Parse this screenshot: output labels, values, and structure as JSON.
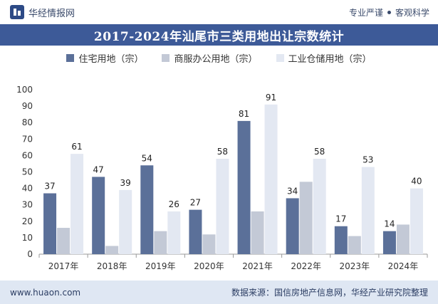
{
  "header": {
    "brand": "华经情报网",
    "slogan_left": "专业严谨",
    "slogan_right": "客观科学"
  },
  "chart_data": {
    "type": "bar",
    "title": "2017-2024年汕尾市三类用地出让宗数统计",
    "categories": [
      "2017年",
      "2018年",
      "2019年",
      "2020年",
      "2021年",
      "2022年",
      "2023年",
      "2024年"
    ],
    "series": [
      {
        "name": "住宅用地（宗）",
        "color": "#5b7099",
        "values": [
          37,
          47,
          54,
          27,
          81,
          34,
          17,
          14
        ],
        "labels": [
          "37",
          "47",
          "54",
          "27",
          "81",
          "34",
          "17",
          "14"
        ]
      },
      {
        "name": "商服办公用地（宗）",
        "color": "#c3c9d6",
        "values": [
          16,
          5,
          14,
          12,
          26,
          44,
          11,
          18
        ],
        "labels": [
          "",
          "",
          "",
          "",
          "",
          "",
          "",
          ""
        ]
      },
      {
        "name": "工业仓储用地（宗）",
        "color": "#e3e8f2",
        "values": [
          61,
          39,
          26,
          58,
          91,
          58,
          53,
          40
        ],
        "labels": [
          "61",
          "39",
          "26",
          "58",
          "91",
          "58",
          "53",
          "40"
        ]
      }
    ],
    "ylim": [
      0,
      100
    ],
    "yticks": [
      0,
      10,
      20,
      30,
      40,
      50,
      60,
      70,
      80,
      90,
      100
    ],
    "grid": false,
    "legend_position": "top"
  },
  "footer": {
    "url": "www.huaon.com",
    "source": "数据来源：国信房地产信息网，华经产业研究院整理"
  }
}
